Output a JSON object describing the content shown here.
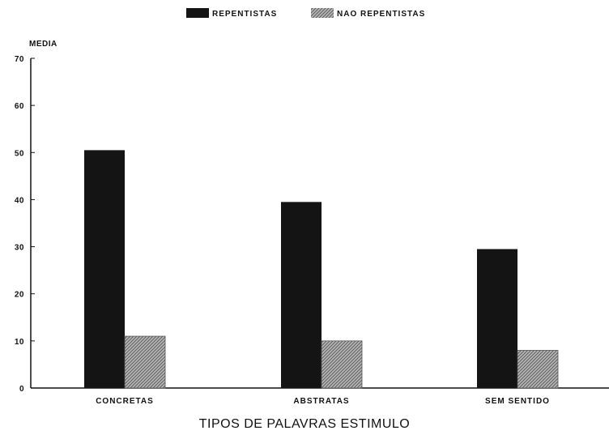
{
  "chart_data": {
    "type": "bar",
    "title": "",
    "xlabel": "TIPOS DE PALAVRAS ESTIMULO",
    "ylabel": "MEDIA",
    "categories": [
      "CONCRETAS",
      "ABSTRATAS",
      "SEM SENTIDO"
    ],
    "series": [
      {
        "name": "REPENTISTAS",
        "values": [
          50.5,
          39.5,
          29.5
        ],
        "color": "#141414"
      },
      {
        "name": "NAO REPENTISTAS",
        "values": [
          11,
          10,
          8
        ],
        "color": "#9a9a9a"
      }
    ],
    "ylim": [
      0,
      70
    ],
    "yticks": [
      "0",
      "10",
      "20",
      "30",
      "40",
      "50",
      "60",
      "70"
    ],
    "grid": false,
    "legend_position": "top-center"
  }
}
